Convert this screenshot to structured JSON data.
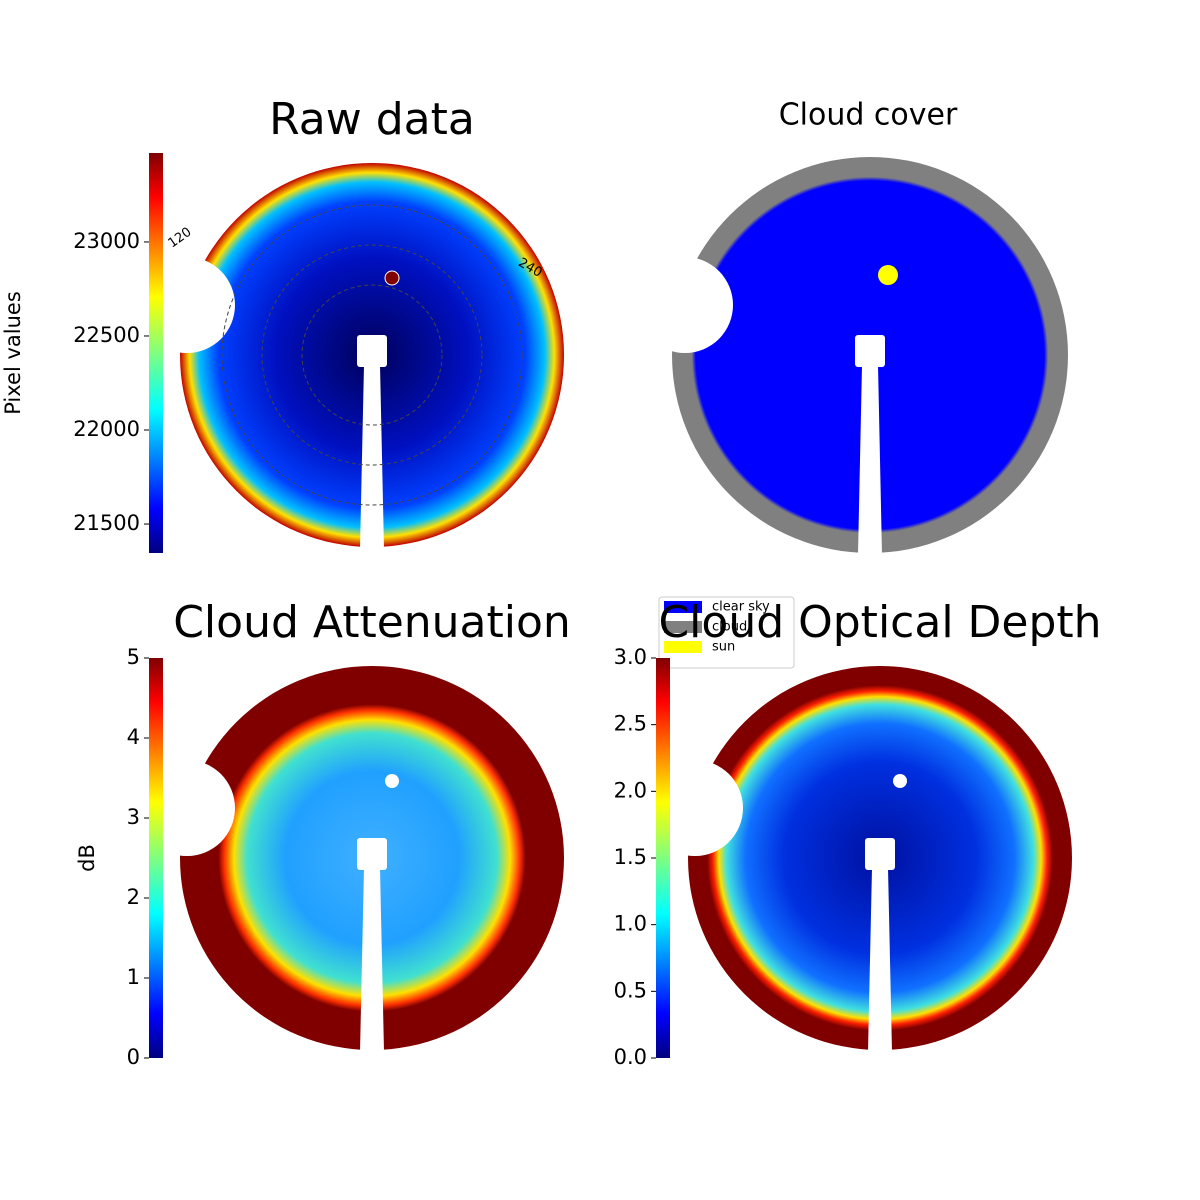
{
  "chart_data": [
    {
      "type": "image",
      "title": "Raw data",
      "colorbar_label": "Pixel values",
      "ylim": [
        21346,
        23473
      ],
      "yticks": [
        21500,
        22000,
        22500,
        23000
      ],
      "polar_labels": [
        "120",
        "240"
      ]
    },
    {
      "type": "image",
      "title": "Cloud cover",
      "legend": "bottom-left",
      "series": [
        {
          "name": "clear sky",
          "color": "#0000ff"
        },
        {
          "name": "cloud",
          "color": "#808080"
        },
        {
          "name": "sun",
          "color": "#ffff00"
        }
      ]
    },
    {
      "type": "image",
      "title": "Cloud Attenuation",
      "colorbar_label": "dB",
      "ylim": [
        0,
        5
      ],
      "yticks": [
        0,
        1,
        2,
        3,
        4,
        5
      ]
    },
    {
      "type": "image",
      "title": "Cloud Optical Depth",
      "ylim": [
        0,
        3
      ],
      "yticks": [
        {
          "value": 0,
          "label": "0.0"
        },
        {
          "value": 0.5,
          "label": "0.5"
        },
        {
          "value": 1,
          "label": "1.0"
        },
        {
          "value": 1.5,
          "label": "1.5"
        },
        {
          "value": 2,
          "label": "2.0"
        },
        {
          "value": 2.5,
          "label": "2.5"
        },
        {
          "value": 3,
          "label": "3.0"
        }
      ]
    }
  ]
}
